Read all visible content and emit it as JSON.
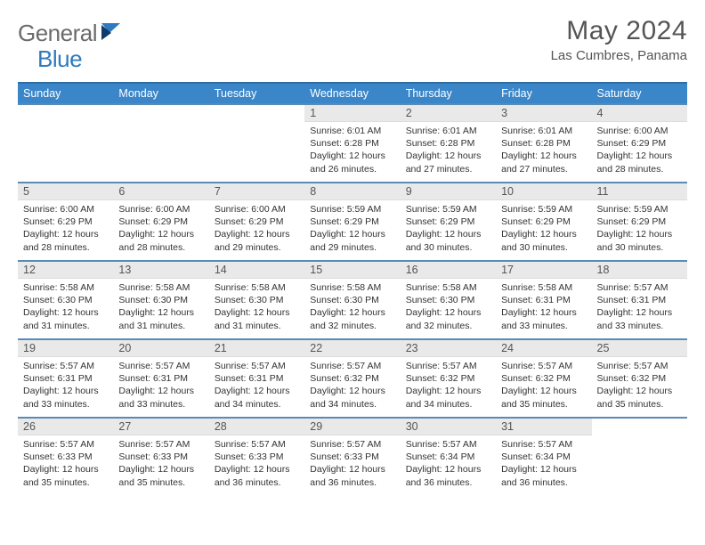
{
  "brand": {
    "part1": "General",
    "part2": "Blue"
  },
  "title": "May 2024",
  "location": "Las Cumbres, Panama",
  "colors": {
    "header_bg": "#3a86c8",
    "header_border": "#2f6da3",
    "row_border": "#5a8bb5",
    "daynum_bg": "#e9e9e9",
    "text_gray": "#555555",
    "brand_gray": "#6b6b6b",
    "brand_blue": "#2f7bbf"
  },
  "day_labels": [
    "Sunday",
    "Monday",
    "Tuesday",
    "Wednesday",
    "Thursday",
    "Friday",
    "Saturday"
  ],
  "weeks": [
    [
      {
        "n": "",
        "sunrise": "",
        "sunset": "",
        "daylight": ""
      },
      {
        "n": "",
        "sunrise": "",
        "sunset": "",
        "daylight": ""
      },
      {
        "n": "",
        "sunrise": "",
        "sunset": "",
        "daylight": ""
      },
      {
        "n": "1",
        "sunrise": "6:01 AM",
        "sunset": "6:28 PM",
        "daylight": "12 hours and 26 minutes."
      },
      {
        "n": "2",
        "sunrise": "6:01 AM",
        "sunset": "6:28 PM",
        "daylight": "12 hours and 27 minutes."
      },
      {
        "n": "3",
        "sunrise": "6:01 AM",
        "sunset": "6:28 PM",
        "daylight": "12 hours and 27 minutes."
      },
      {
        "n": "4",
        "sunrise": "6:00 AM",
        "sunset": "6:29 PM",
        "daylight": "12 hours and 28 minutes."
      }
    ],
    [
      {
        "n": "5",
        "sunrise": "6:00 AM",
        "sunset": "6:29 PM",
        "daylight": "12 hours and 28 minutes."
      },
      {
        "n": "6",
        "sunrise": "6:00 AM",
        "sunset": "6:29 PM",
        "daylight": "12 hours and 28 minutes."
      },
      {
        "n": "7",
        "sunrise": "6:00 AM",
        "sunset": "6:29 PM",
        "daylight": "12 hours and 29 minutes."
      },
      {
        "n": "8",
        "sunrise": "5:59 AM",
        "sunset": "6:29 PM",
        "daylight": "12 hours and 29 minutes."
      },
      {
        "n": "9",
        "sunrise": "5:59 AM",
        "sunset": "6:29 PM",
        "daylight": "12 hours and 30 minutes."
      },
      {
        "n": "10",
        "sunrise": "5:59 AM",
        "sunset": "6:29 PM",
        "daylight": "12 hours and 30 minutes."
      },
      {
        "n": "11",
        "sunrise": "5:59 AM",
        "sunset": "6:29 PM",
        "daylight": "12 hours and 30 minutes."
      }
    ],
    [
      {
        "n": "12",
        "sunrise": "5:58 AM",
        "sunset": "6:30 PM",
        "daylight": "12 hours and 31 minutes."
      },
      {
        "n": "13",
        "sunrise": "5:58 AM",
        "sunset": "6:30 PM",
        "daylight": "12 hours and 31 minutes."
      },
      {
        "n": "14",
        "sunrise": "5:58 AM",
        "sunset": "6:30 PM",
        "daylight": "12 hours and 31 minutes."
      },
      {
        "n": "15",
        "sunrise": "5:58 AM",
        "sunset": "6:30 PM",
        "daylight": "12 hours and 32 minutes."
      },
      {
        "n": "16",
        "sunrise": "5:58 AM",
        "sunset": "6:30 PM",
        "daylight": "12 hours and 32 minutes."
      },
      {
        "n": "17",
        "sunrise": "5:58 AM",
        "sunset": "6:31 PM",
        "daylight": "12 hours and 33 minutes."
      },
      {
        "n": "18",
        "sunrise": "5:57 AM",
        "sunset": "6:31 PM",
        "daylight": "12 hours and 33 minutes."
      }
    ],
    [
      {
        "n": "19",
        "sunrise": "5:57 AM",
        "sunset": "6:31 PM",
        "daylight": "12 hours and 33 minutes."
      },
      {
        "n": "20",
        "sunrise": "5:57 AM",
        "sunset": "6:31 PM",
        "daylight": "12 hours and 33 minutes."
      },
      {
        "n": "21",
        "sunrise": "5:57 AM",
        "sunset": "6:31 PM",
        "daylight": "12 hours and 34 minutes."
      },
      {
        "n": "22",
        "sunrise": "5:57 AM",
        "sunset": "6:32 PM",
        "daylight": "12 hours and 34 minutes."
      },
      {
        "n": "23",
        "sunrise": "5:57 AM",
        "sunset": "6:32 PM",
        "daylight": "12 hours and 34 minutes."
      },
      {
        "n": "24",
        "sunrise": "5:57 AM",
        "sunset": "6:32 PM",
        "daylight": "12 hours and 35 minutes."
      },
      {
        "n": "25",
        "sunrise": "5:57 AM",
        "sunset": "6:32 PM",
        "daylight": "12 hours and 35 minutes."
      }
    ],
    [
      {
        "n": "26",
        "sunrise": "5:57 AM",
        "sunset": "6:33 PM",
        "daylight": "12 hours and 35 minutes."
      },
      {
        "n": "27",
        "sunrise": "5:57 AM",
        "sunset": "6:33 PM",
        "daylight": "12 hours and 35 minutes."
      },
      {
        "n": "28",
        "sunrise": "5:57 AM",
        "sunset": "6:33 PM",
        "daylight": "12 hours and 36 minutes."
      },
      {
        "n": "29",
        "sunrise": "5:57 AM",
        "sunset": "6:33 PM",
        "daylight": "12 hours and 36 minutes."
      },
      {
        "n": "30",
        "sunrise": "5:57 AM",
        "sunset": "6:34 PM",
        "daylight": "12 hours and 36 minutes."
      },
      {
        "n": "31",
        "sunrise": "5:57 AM",
        "sunset": "6:34 PM",
        "daylight": "12 hours and 36 minutes."
      },
      {
        "n": "",
        "sunrise": "",
        "sunset": "",
        "daylight": ""
      }
    ]
  ],
  "labels": {
    "sunrise": "Sunrise: ",
    "sunset": "Sunset: ",
    "daylight": "Daylight: "
  }
}
